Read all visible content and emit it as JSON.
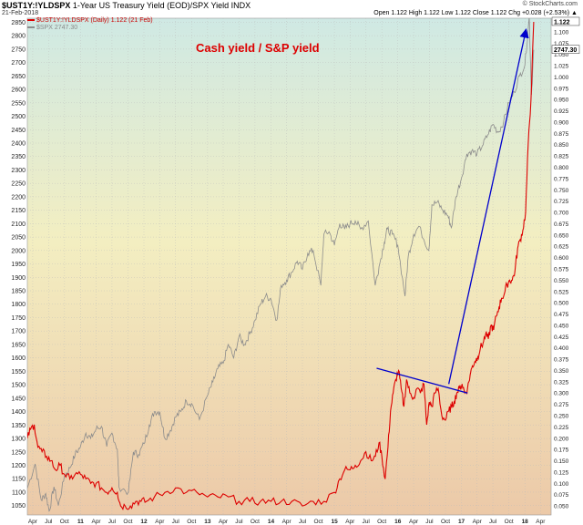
{
  "header": {
    "ticker": "$UST1Y:!YLDSPX",
    "description": "1-Year US Treasury Yield (EOD)/SPX Yield INDX",
    "date": "21-Feb-2018",
    "source": "© StockCharts.com",
    "ohlc": "Open 1.122  High 1.122  Low 1.122  Close 1.122  Chg +0.028 (+2.53%) ▲"
  },
  "legend": {
    "series_a": "$UST1Y:!YLDSPX (Daily) 1.122 (21 Feb)",
    "series_b": "$SPX 2747.30"
  },
  "colors": {
    "ratio_line": "#dd0000",
    "spx_line": "#8c8c8c",
    "annotation_title": "#dd0000",
    "trend_line": "#0000cc",
    "bg_top": "#cfe9e4",
    "bg_mid": "#f3eec1",
    "bg_bottom": "#ecc9a8"
  },
  "chart_data": {
    "type": "line",
    "annotation": "Cash yield / S&P yield",
    "x_range": [
      "2010-03-01",
      "2018-06-01"
    ],
    "x_tick_labels": [
      "Apr",
      "Jul",
      "Oct",
      "11",
      "Apr",
      "Jul",
      "Oct",
      "12",
      "Apr",
      "Jul",
      "Oct",
      "13",
      "Apr",
      "Jul",
      "Oct",
      "14",
      "Apr",
      "Jul",
      "Oct",
      "15",
      "Apr",
      "Jul",
      "Oct",
      "16",
      "Apr",
      "Jul",
      "Oct",
      "17",
      "Apr",
      "Jul",
      "Oct",
      "18",
      "Apr"
    ],
    "left_axis": {
      "ylim": [
        1015,
        2865
      ],
      "ticks": [
        1050,
        1100,
        1150,
        1200,
        1250,
        1300,
        1350,
        1400,
        1450,
        1500,
        1550,
        1600,
        1650,
        1700,
        1750,
        1800,
        1850,
        1900,
        1950,
        2000,
        2050,
        2100,
        2150,
        2200,
        2250,
        2300,
        2350,
        2400,
        2450,
        2500,
        2550,
        2600,
        2650,
        2700,
        2750,
        2800,
        2850
      ]
    },
    "right_axis": {
      "ylim": [
        0.03,
        1.13
      ],
      "ticks": [
        0.05,
        0.075,
        0.1,
        0.125,
        0.15,
        0.175,
        0.2,
        0.225,
        0.25,
        0.275,
        0.3,
        0.325,
        0.35,
        0.375,
        0.4,
        0.425,
        0.45,
        0.475,
        0.5,
        0.525,
        0.55,
        0.575,
        0.6,
        0.625,
        0.65,
        0.675,
        0.7,
        0.725,
        0.75,
        0.775,
        0.8,
        0.825,
        0.85,
        0.875,
        0.9,
        0.925,
        0.95,
        0.975,
        1.0,
        1.025,
        1.05,
        1.075,
        1.1
      ],
      "last_value_label": "1.122",
      "spx_last_label": "2747.30"
    },
    "series": [
      {
        "name": "$UST1Y:!YLDSPX",
        "axis": "right",
        "x": [
          "2010-03-01",
          "2010-03-20",
          "2010-04-10",
          "2010-05-01",
          "2010-05-25",
          "2010-06-20",
          "2010-07-15",
          "2010-08-10",
          "2010-09-05",
          "2010-10-01",
          "2010-11-01",
          "2010-12-01",
          "2011-01-01",
          "2011-02-01",
          "2011-03-01",
          "2011-04-01",
          "2011-05-01",
          "2011-06-01",
          "2011-07-01",
          "2011-08-01",
          "2011-08-20",
          "2011-09-15",
          "2011-10-15",
          "2011-11-15",
          "2011-12-15",
          "2012-01-15",
          "2012-03-01",
          "2012-05-01",
          "2012-07-01",
          "2012-09-01",
          "2012-11-01",
          "2013-01-01",
          "2013-03-01",
          "2013-05-01",
          "2013-07-01",
          "2013-09-01",
          "2013-11-01",
          "2014-01-01",
          "2014-03-01",
          "2014-05-01",
          "2014-07-01",
          "2014-09-01",
          "2014-11-01",
          "2015-01-01",
          "2015-02-01",
          "2015-03-01",
          "2015-04-01",
          "2015-05-01",
          "2015-06-01",
          "2015-07-01",
          "2015-08-01",
          "2015-08-25",
          "2015-09-15",
          "2015-10-01",
          "2015-10-20",
          "2015-11-05",
          "2015-11-20",
          "2015-12-05",
          "2015-12-20",
          "2016-01-05",
          "2016-01-20",
          "2016-02-05",
          "2016-02-20",
          "2016-03-10",
          "2016-04-01",
          "2016-04-20",
          "2016-05-10",
          "2016-05-30",
          "2016-06-15",
          "2016-06-30",
          "2016-07-15",
          "2016-08-01",
          "2016-08-20",
          "2016-09-10",
          "2016-10-01",
          "2016-10-20",
          "2016-11-05",
          "2016-11-20",
          "2016-12-05",
          "2016-12-20",
          "2017-01-05",
          "2017-01-20",
          "2017-02-05",
          "2017-02-20",
          "2017-03-05",
          "2017-03-20",
          "2017-04-05",
          "2017-04-20",
          "2017-05-05",
          "2017-05-20",
          "2017-06-05",
          "2017-06-20",
          "2017-07-05",
          "2017-07-20",
          "2017-08-05",
          "2017-08-20",
          "2017-09-05",
          "2017-09-20",
          "2017-10-05",
          "2017-10-20",
          "2017-11-05",
          "2017-11-20",
          "2017-12-05",
          "2017-12-20",
          "2018-01-05",
          "2018-01-20",
          "2018-02-05",
          "2018-02-21"
        ],
        "values": [
          0.2,
          0.22,
          0.23,
          0.18,
          0.17,
          0.16,
          0.15,
          0.13,
          0.14,
          0.12,
          0.11,
          0.12,
          0.12,
          0.11,
          0.1,
          0.1,
          0.09,
          0.08,
          0.09,
          0.08,
          0.05,
          0.05,
          0.05,
          0.06,
          0.06,
          0.06,
          0.07,
          0.08,
          0.09,
          0.08,
          0.08,
          0.07,
          0.07,
          0.07,
          0.06,
          0.06,
          0.06,
          0.06,
          0.06,
          0.06,
          0.05,
          0.06,
          0.06,
          0.08,
          0.11,
          0.13,
          0.13,
          0.14,
          0.15,
          0.17,
          0.15,
          0.16,
          0.19,
          0.16,
          0.11,
          0.18,
          0.26,
          0.3,
          0.33,
          0.35,
          0.31,
          0.27,
          0.33,
          0.3,
          0.29,
          0.31,
          0.3,
          0.32,
          0.23,
          0.28,
          0.27,
          0.3,
          0.31,
          0.25,
          0.24,
          0.26,
          0.27,
          0.28,
          0.3,
          0.31,
          0.32,
          0.3,
          0.31,
          0.34,
          0.36,
          0.37,
          0.38,
          0.4,
          0.41,
          0.43,
          0.42,
          0.45,
          0.44,
          0.47,
          0.49,
          0.51,
          0.52,
          0.54,
          0.55,
          0.55,
          0.57,
          0.62,
          0.64,
          0.66,
          0.7,
          0.85,
          0.95,
          1.122
        ]
      },
      {
        "name": "$SPX",
        "axis": "left",
        "x": [
          "2010-03-01",
          "2010-04-15",
          "2010-05-20",
          "2010-06-15",
          "2010-07-05",
          "2010-08-01",
          "2010-08-27",
          "2010-10-01",
          "2010-11-01",
          "2010-12-01",
          "2011-01-01",
          "2011-02-01",
          "2011-03-01",
          "2011-04-01",
          "2011-05-01",
          "2011-06-01",
          "2011-07-01",
          "2011-08-01",
          "2011-08-10",
          "2011-10-04",
          "2011-11-01",
          "2011-12-01",
          "2012-01-01",
          "2012-02-01",
          "2012-03-01",
          "2012-04-01",
          "2012-05-01",
          "2012-06-01",
          "2012-07-01",
          "2012-08-01",
          "2012-09-01",
          "2012-10-01",
          "2012-11-15",
          "2013-01-01",
          "2013-02-01",
          "2013-03-01",
          "2013-04-01",
          "2013-05-01",
          "2013-06-01",
          "2013-07-01",
          "2013-08-01",
          "2013-09-01",
          "2013-10-01",
          "2013-11-01",
          "2013-12-01",
          "2014-01-01",
          "2014-02-03",
          "2014-03-01",
          "2014-04-01",
          "2014-05-01",
          "2014-06-01",
          "2014-07-01",
          "2014-08-01",
          "2014-09-01",
          "2014-10-15",
          "2014-11-01",
          "2014-12-01",
          "2015-01-01",
          "2015-02-01",
          "2015-03-01",
          "2015-04-01",
          "2015-05-01",
          "2015-06-01",
          "2015-07-15",
          "2015-08-24",
          "2015-09-15",
          "2015-10-15",
          "2015-11-01",
          "2015-12-01",
          "2016-01-01",
          "2016-02-11",
          "2016-03-01",
          "2016-04-01",
          "2016-05-01",
          "2016-06-27",
          "2016-07-15",
          "2016-08-15",
          "2016-09-15",
          "2016-10-15",
          "2016-11-04",
          "2016-12-01",
          "2017-01-01",
          "2017-02-01",
          "2017-03-01",
          "2017-04-01",
          "2017-05-01",
          "2017-06-01",
          "2017-07-01",
          "2017-08-01",
          "2017-09-01",
          "2017-10-01",
          "2017-11-01",
          "2017-12-01",
          "2018-01-01",
          "2018-01-26",
          "2018-02-08",
          "2018-02-21"
        ],
        "values": [
          1115,
          1205,
          1070,
          1095,
          1030,
          1120,
          1050,
          1160,
          1190,
          1240,
          1270,
          1320,
          1300,
          1335,
          1345,
          1270,
          1320,
          1260,
          1120,
          1100,
          1250,
          1240,
          1280,
          1350,
          1400,
          1400,
          1300,
          1330,
          1380,
          1400,
          1440,
          1430,
          1370,
          1460,
          1510,
          1560,
          1580,
          1650,
          1600,
          1680,
          1650,
          1690,
          1740,
          1800,
          1830,
          1820,
          1740,
          1870,
          1890,
          1920,
          1960,
          1930,
          1990,
          2000,
          1870,
          2060,
          2070,
          2020,
          2100,
          2080,
          2100,
          2110,
          2080,
          2110,
          1870,
          1940,
          2030,
          2080,
          2060,
          2020,
          1830,
          1980,
          2060,
          2090,
          2000,
          2170,
          2180,
          2150,
          2130,
          2085,
          2200,
          2270,
          2360,
          2370,
          2360,
          2390,
          2430,
          2470,
          2440,
          2480,
          2550,
          2590,
          2650,
          2690,
          2870,
          2580,
          2747.3
        ]
      }
    ],
    "trend_lines": [
      {
        "name": "resistance",
        "x": [
          "2015-09-01",
          "2017-02-05"
        ],
        "y_right": [
          0.355,
          0.3
        ]
      },
      {
        "name": "projection",
        "x": [
          "2016-10-20",
          "2018-01-05"
        ],
        "y_right": [
          0.32,
          1.1
        ]
      }
    ]
  }
}
